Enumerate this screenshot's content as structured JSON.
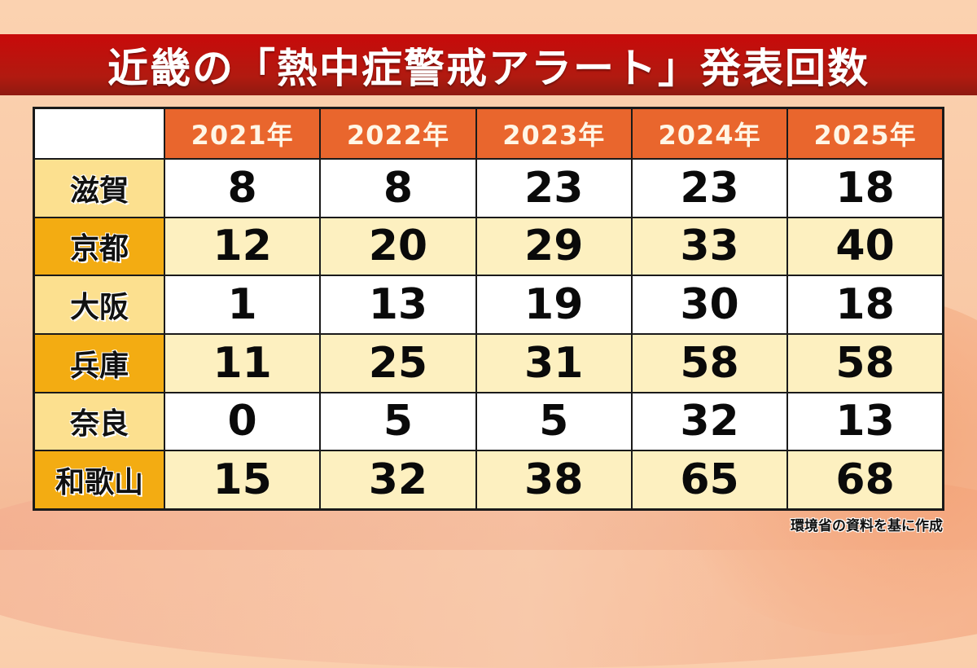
{
  "title": "近畿の「熱中症警戒アラート」発表回数",
  "table": {
    "columns": [
      "2021年",
      "2022年",
      "2023年",
      "2024年",
      "2025年"
    ],
    "rows": [
      {
        "label": "滋賀",
        "values": [
          "8",
          "8",
          "23",
          "23",
          "18"
        ]
      },
      {
        "label": "京都",
        "values": [
          "12",
          "20",
          "29",
          "33",
          "40"
        ]
      },
      {
        "label": "大阪",
        "values": [
          "1",
          "13",
          "19",
          "30",
          "18"
        ]
      },
      {
        "label": "兵庫",
        "values": [
          "11",
          "25",
          "31",
          "58",
          "58"
        ]
      },
      {
        "label": "奈良",
        "values": [
          "0",
          "5",
          "5",
          "32",
          "13"
        ]
      },
      {
        "label": "和歌山",
        "values": [
          "15",
          "32",
          "38",
          "65",
          "68"
        ]
      }
    ]
  },
  "source": "環境省の資料を基に作成",
  "colors": {
    "title_bar": "#c80a0a",
    "header": "#e9662d",
    "pref_light": "#fce08f",
    "pref_dark": "#f3ac12",
    "row_alt": "#fdf0c0"
  },
  "chart_data": {
    "type": "table",
    "title": "近畿の「熱中症警戒アラート」発表回数",
    "categories": [
      "2021年",
      "2022年",
      "2023年",
      "2024年",
      "2025年"
    ],
    "series": [
      {
        "name": "滋賀",
        "values": [
          8,
          8,
          23,
          23,
          18
        ]
      },
      {
        "name": "京都",
        "values": [
          12,
          20,
          29,
          33,
          40
        ]
      },
      {
        "name": "大阪",
        "values": [
          1,
          13,
          19,
          30,
          18
        ]
      },
      {
        "name": "兵庫",
        "values": [
          11,
          25,
          31,
          58,
          58
        ]
      },
      {
        "name": "奈良",
        "values": [
          0,
          5,
          5,
          32,
          13
        ]
      },
      {
        "name": "和歌山",
        "values": [
          15,
          32,
          38,
          65,
          68
        ]
      }
    ],
    "annotations": [
      "環境省の資料を基に作成"
    ]
  }
}
